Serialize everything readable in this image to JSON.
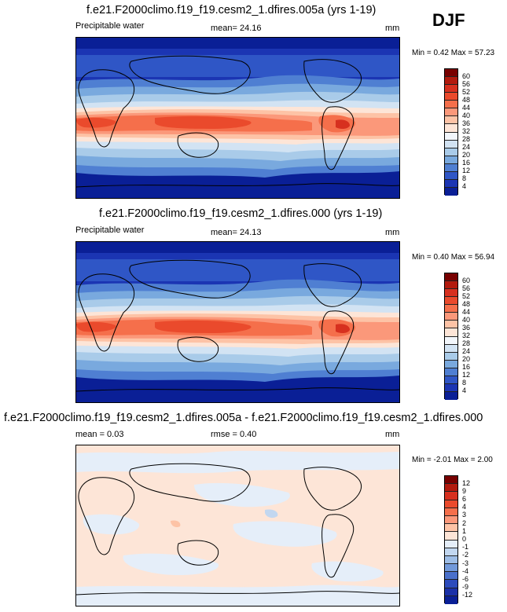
{
  "header": {
    "season": "DJF"
  },
  "panels": [
    {
      "title": "f.e21.F2000climo.f19_f19.cesm2_1.dfires.005a (yrs 1-19)",
      "field_label": "Precipitable water",
      "mean": "mean=  24.16",
      "units": "mm",
      "minmax": "Min =   0.42 Max =  57.23"
    },
    {
      "title": "f.e21.F2000climo.f19_f19.cesm2_1.dfires.000 (yrs 1-19)",
      "field_label": "Precipitable water",
      "mean": "mean=  24.13",
      "units": "mm",
      "minmax": "Min =   0.40 Max =  56.94"
    },
    {
      "title": "f.e21.F2000climo.f19_f19.cesm2_1.dfires.005a - f.e21.F2000climo.f19_f19.cesm2_1.dfires.000",
      "mean": "mean =   0.03",
      "rmse": "rmse =   0.40",
      "units": "mm",
      "minmax": "Min =  -2.01 Max =   2.00"
    }
  ],
  "chart_data": [
    {
      "type": "heatmap",
      "title": "f.e21.F2000climo.f19_f19.cesm2_1.dfires.005a (yrs 1-19)",
      "variable": "Precipitable water",
      "units": "mm",
      "mean": 24.16,
      "min": 0.42,
      "max": 57.23,
      "colorbar_levels": [
        "60",
        "56",
        "52",
        "48",
        "44",
        "40",
        "36",
        "32",
        "28",
        "24",
        "20",
        "16",
        "12",
        "8",
        "4"
      ],
      "colorbar_colors": [
        "#780000",
        "#b21a0e",
        "#d7301f",
        "#ea4a2c",
        "#f56f4b",
        "#fb987a",
        "#fdc3a6",
        "#fde5d7",
        "#f2f6fb",
        "#d2e3f3",
        "#a9cbe9",
        "#79a9de",
        "#4f7fd2",
        "#2f56c6",
        "#1b35b3",
        "#0a1f96"
      ]
    },
    {
      "type": "heatmap",
      "title": "f.e21.F2000climo.f19_f19.cesm2_1.dfires.000 (yrs 1-19)",
      "variable": "Precipitable water",
      "units": "mm",
      "mean": 24.13,
      "min": 0.4,
      "max": 56.94,
      "colorbar_levels": [
        "60",
        "56",
        "52",
        "48",
        "44",
        "40",
        "36",
        "32",
        "28",
        "24",
        "20",
        "16",
        "12",
        "8",
        "4"
      ],
      "colorbar_colors": [
        "#780000",
        "#b21a0e",
        "#d7301f",
        "#ea4a2c",
        "#f56f4b",
        "#fb987a",
        "#fdc3a6",
        "#fde5d7",
        "#f2f6fb",
        "#d2e3f3",
        "#a9cbe9",
        "#79a9de",
        "#4f7fd2",
        "#2f56c6",
        "#1b35b3",
        "#0a1f96"
      ]
    },
    {
      "type": "heatmap",
      "title": "f.e21.F2000climo.f19_f19.cesm2_1.dfires.005a - f.e21.F2000climo.f19_f19.cesm2_1.dfires.000",
      "units": "mm",
      "mean": 0.03,
      "rmse": 0.4,
      "min": -2.01,
      "max": 2.0,
      "colorbar_levels": [
        "12",
        "9",
        "6",
        "4",
        "3",
        "2",
        "1",
        "0",
        "-1",
        "-2",
        "-3",
        "-4",
        "-6",
        "-9",
        "-12"
      ],
      "colorbar_colors": [
        "#780000",
        "#b21a0e",
        "#d7301f",
        "#ea4a2c",
        "#f56f4b",
        "#fb987a",
        "#fdc3a6",
        "#fde5d7",
        "#e5eef9",
        "#c2d7f0",
        "#9dbde6",
        "#7199da",
        "#4a70cb",
        "#2c4bbc",
        "#1a30a8",
        "#0a1f96"
      ]
    }
  ]
}
